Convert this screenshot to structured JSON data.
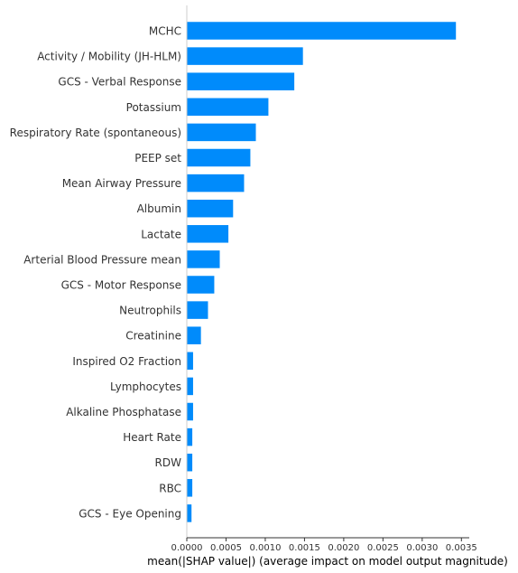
{
  "chart_data": {
    "type": "bar",
    "orientation": "horizontal",
    "categories": [
      "MCHC",
      "Activity / Mobility (JH-HLM)",
      "GCS - Verbal Response",
      "Potassium",
      "Respiratory Rate (spontaneous)",
      "PEEP set",
      "Mean Airway Pressure",
      "Albumin",
      "Lactate",
      "Arterial Blood Pressure mean",
      "GCS - Motor Response",
      "Neutrophils",
      "Creatinine",
      "Inspired O2 Fraction",
      "Lymphocytes",
      "Alkaline Phosphatase",
      "Heart Rate",
      "RDW",
      "RBC",
      "GCS - Eye Opening"
    ],
    "values": [
      0.00343,
      0.00148,
      0.00137,
      0.00104,
      0.00088,
      0.00081,
      0.00073,
      0.00059,
      0.00053,
      0.00042,
      0.00035,
      0.00027,
      0.00018,
      8e-05,
      8e-05,
      8e-05,
      7e-05,
      7e-05,
      7e-05,
      6e-05
    ],
    "xlabel": "mean(|SHAP value|) (average impact on model output magnitude)",
    "xlim": [
      0,
      0.0036
    ],
    "xticks": [
      "0.0000",
      "0.0005",
      "0.0010",
      "0.0015",
      "0.0020",
      "0.0025",
      "0.0030",
      "0.0035"
    ],
    "bar_color": "#008bfb",
    "grid": false
  }
}
